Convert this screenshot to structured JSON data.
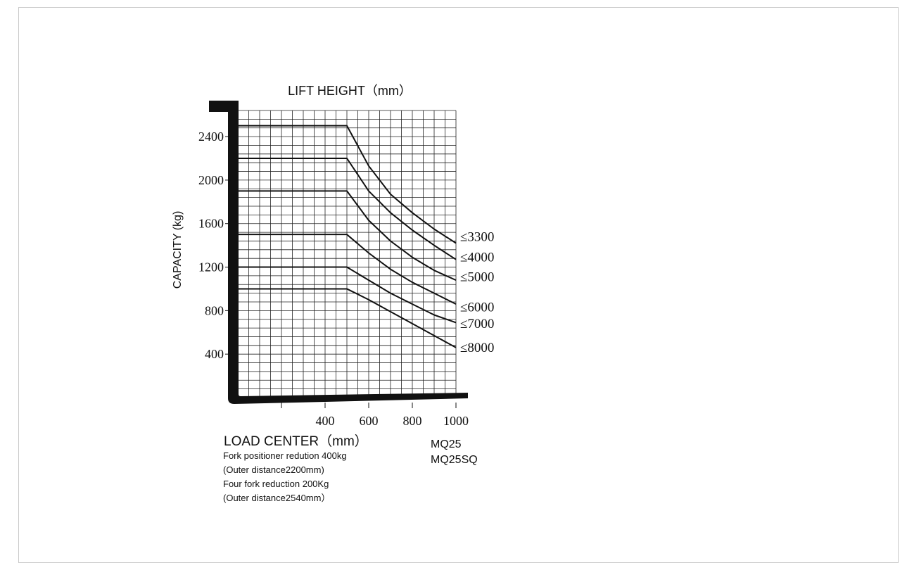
{
  "chart_data": {
    "type": "line",
    "title": "LIFT HEIGHT（mm）",
    "xlabel": "LOAD CENTER（mm）",
    "ylabel": "CAPACITY (kg)",
    "xlim": [
      0,
      1000
    ],
    "ylim": [
      0,
      2640
    ],
    "x_ticks": [
      200,
      400,
      600,
      800,
      1000
    ],
    "x_tick_labels": [
      "",
      "400",
      "600",
      "800",
      "1000"
    ],
    "y_ticks": [
      400,
      800,
      1200,
      1600,
      2000,
      2400
    ],
    "y_tick_labels": [
      "400",
      "800",
      "1200",
      "1600",
      "2000",
      "2400"
    ],
    "grid": true,
    "series": [
      {
        "name": "≤3300",
        "x": [
          0,
          500,
          600,
          700,
          800,
          900,
          1000
        ],
        "y": [
          2500,
          2500,
          2130,
          1870,
          1700,
          1550,
          1420
        ]
      },
      {
        "name": "≤4000",
        "x": [
          0,
          500,
          600,
          700,
          800,
          900,
          1000
        ],
        "y": [
          2200,
          2200,
          1900,
          1700,
          1540,
          1400,
          1270
        ]
      },
      {
        "name": "≤5000",
        "x": [
          0,
          500,
          600,
          700,
          800,
          900,
          1000
        ],
        "y": [
          1900,
          1900,
          1630,
          1440,
          1290,
          1170,
          1080
        ]
      },
      {
        "name": "≤6000",
        "x": [
          0,
          500,
          600,
          700,
          800,
          900,
          1000
        ],
        "y": [
          1500,
          1500,
          1330,
          1180,
          1060,
          960,
          860
        ]
      },
      {
        "name": "≤7000",
        "x": [
          0,
          500,
          600,
          700,
          800,
          900,
          1000
        ],
        "y": [
          1200,
          1200,
          1080,
          960,
          860,
          760,
          690
        ]
      },
      {
        "name": "≤8000",
        "x": [
          0,
          500,
          600,
          700,
          800,
          900,
          1000
        ],
        "y": [
          1000,
          1000,
          900,
          790,
          680,
          570,
          460
        ]
      }
    ],
    "series_label_y": [
      1480,
      1290,
      1110,
      830,
      680,
      460
    ]
  },
  "notes": [
    "Fork positioner redution 400kg",
    "(Outer distance2200mm)",
    "Four fork reduction 200Kg",
    "(Outer distance2540mm）"
  ],
  "models": [
    "MQ25",
    "MQ25SQ"
  ],
  "colors": {
    "ink": "#111111",
    "grid": "#222222",
    "frame": "#c9c9c9"
  }
}
